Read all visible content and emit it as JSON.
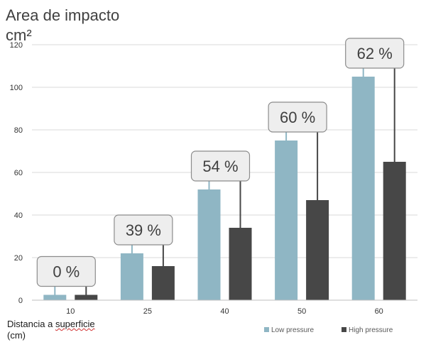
{
  "chart_data": {
    "type": "bar",
    "title_line1": "Area de impacto",
    "title_line2": "cm²",
    "xlabel_part1": "Distancia a",
    "xlabel_part2": "superficie",
    "xlabel_part3": "(cm)",
    "categories": [
      "10",
      "25",
      "40",
      "50",
      "60"
    ],
    "y_ticks": [
      0,
      20,
      40,
      60,
      80,
      100,
      120
    ],
    "ylim": [
      0,
      120
    ],
    "grid": true,
    "legend_position": "bottom-right",
    "series": [
      {
        "name": "Low pressure",
        "color": "#8FB6C4",
        "values": [
          2.5,
          22,
          52,
          75,
          105
        ]
      },
      {
        "name": "High pressure",
        "color": "#474747",
        "values": [
          2.5,
          16,
          34,
          47,
          65
        ]
      }
    ],
    "annotations": [
      "0 %",
      "39 %",
      "54 %",
      "60 %",
      "62 %"
    ]
  }
}
